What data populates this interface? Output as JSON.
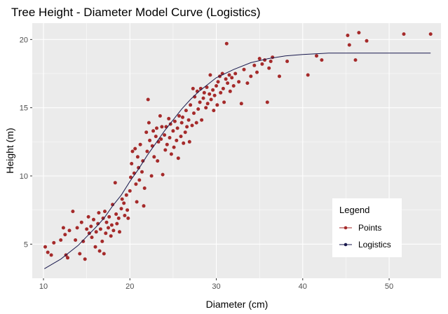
{
  "chart_data": {
    "type": "scatter",
    "title": "Tree Height - Diameter Model Curve (Logistics)",
    "xlabel": "Diameter (cm)",
    "ylabel": "Height (m)",
    "xlim": [
      8.7,
      56.0
    ],
    "ylim": [
      2.5,
      21.2
    ],
    "x_ticks": [
      10,
      20,
      30,
      40,
      50
    ],
    "y_ticks": [
      5,
      10,
      15,
      20
    ],
    "grid": true,
    "legend": {
      "title": "Legend",
      "placement": "bottom-right",
      "entries": [
        {
          "label": "Points",
          "color": "#a52a2a",
          "kind": "point"
        },
        {
          "label": "Logistics",
          "color": "#1a1a4e",
          "kind": "line"
        }
      ]
    },
    "colors": {
      "points": "#a52a2a",
      "curve": "#1a1a4e",
      "panel": "#ebebeb",
      "grid": "#ffffff"
    },
    "series": [
      {
        "name": "Points",
        "points": [
          [
            10.2,
            4.8
          ],
          [
            10.5,
            4.4
          ],
          [
            10.9,
            4.2
          ],
          [
            11.2,
            5.1
          ],
          [
            12.0,
            5.3
          ],
          [
            12.3,
            6.2
          ],
          [
            12.6,
            4.2
          ],
          [
            12.8,
            4.0
          ],
          [
            12.5,
            5.7
          ],
          [
            13.0,
            6.0
          ],
          [
            13.4,
            7.4
          ],
          [
            13.7,
            5.3
          ],
          [
            13.9,
            6.2
          ],
          [
            14.2,
            4.3
          ],
          [
            14.4,
            6.6
          ],
          [
            14.6,
            5.2
          ],
          [
            14.8,
            3.9
          ],
          [
            15.0,
            6.1
          ],
          [
            15.2,
            7.0
          ],
          [
            15.3,
            5.8
          ],
          [
            15.5,
            6.3
          ],
          [
            15.6,
            5.5
          ],
          [
            15.8,
            6.8
          ],
          [
            16.0,
            4.8
          ],
          [
            16.1,
            5.9
          ],
          [
            16.3,
            6.5
          ],
          [
            16.4,
            7.3
          ],
          [
            16.5,
            4.5
          ],
          [
            16.6,
            6.1
          ],
          [
            16.8,
            5.2
          ],
          [
            16.9,
            6.9
          ],
          [
            17.0,
            4.3
          ],
          [
            17.1,
            7.4
          ],
          [
            17.2,
            5.8
          ],
          [
            17.3,
            6.6
          ],
          [
            17.5,
            6.2
          ],
          [
            17.6,
            7.0
          ],
          [
            17.8,
            5.6
          ],
          [
            17.9,
            6.4
          ],
          [
            18.0,
            7.9
          ],
          [
            18.1,
            6.0
          ],
          [
            18.3,
            9.5
          ],
          [
            18.4,
            7.2
          ],
          [
            18.5,
            6.5
          ],
          [
            18.7,
            6.9
          ],
          [
            18.8,
            5.9
          ],
          [
            19.0,
            7.6
          ],
          [
            19.1,
            8.3
          ],
          [
            19.3,
            8.0
          ],
          [
            19.4,
            7.1
          ],
          [
            19.6,
            8.6
          ],
          [
            19.7,
            7.5
          ],
          [
            19.8,
            6.9
          ],
          [
            20.0,
            8.9
          ],
          [
            20.1,
            9.9
          ],
          [
            20.2,
            10.9
          ],
          [
            20.3,
            11.8
          ],
          [
            20.5,
            10.2
          ],
          [
            20.6,
            12.0
          ],
          [
            20.7,
            9.4
          ],
          [
            20.8,
            8.1
          ],
          [
            20.9,
            11.4
          ],
          [
            21.0,
            10.6
          ],
          [
            21.1,
            9.7
          ],
          [
            21.2,
            12.3
          ],
          [
            21.4,
            10.3
          ],
          [
            21.5,
            11.1
          ],
          [
            21.6,
            7.8
          ],
          [
            21.7,
            9.1
          ],
          [
            21.9,
            13.2
          ],
          [
            22.0,
            11.8
          ],
          [
            22.1,
            15.6
          ],
          [
            22.2,
            13.9
          ],
          [
            22.3,
            12.6
          ],
          [
            22.5,
            10.0
          ],
          [
            22.6,
            12.2
          ],
          [
            22.7,
            13.3
          ],
          [
            22.8,
            11.4
          ],
          [
            23.0,
            12.9
          ],
          [
            23.1,
            13.5
          ],
          [
            23.2,
            11.1
          ],
          [
            23.3,
            12.5
          ],
          [
            23.5,
            14.4
          ],
          [
            23.6,
            12.7
          ],
          [
            23.7,
            13.6
          ],
          [
            23.8,
            10.1
          ],
          [
            24.0,
            13.0
          ],
          [
            24.1,
            11.9
          ],
          [
            24.2,
            13.6
          ],
          [
            24.3,
            12.3
          ],
          [
            24.5,
            14.2
          ],
          [
            24.6,
            12.8
          ],
          [
            24.7,
            13.8
          ],
          [
            24.8,
            11.6
          ],
          [
            25.0,
            13.3
          ],
          [
            25.1,
            12.1
          ],
          [
            25.2,
            14.0
          ],
          [
            25.4,
            12.6
          ],
          [
            25.5,
            13.5
          ],
          [
            25.6,
            11.3
          ],
          [
            25.7,
            14.4
          ],
          [
            25.9,
            12.9
          ],
          [
            26.0,
            13.9
          ],
          [
            26.1,
            14.3
          ],
          [
            26.2,
            12.4
          ],
          [
            26.4,
            13.2
          ],
          [
            26.5,
            14.8
          ],
          [
            26.6,
            13.6
          ],
          [
            26.8,
            14.1
          ],
          [
            26.9,
            12.5
          ],
          [
            27.0,
            15.2
          ],
          [
            27.2,
            13.7
          ],
          [
            27.3,
            16.4
          ],
          [
            27.4,
            14.6
          ],
          [
            27.5,
            15.8
          ],
          [
            27.7,
            13.9
          ],
          [
            27.8,
            16.2
          ],
          [
            27.9,
            14.9
          ],
          [
            28.1,
            15.4
          ],
          [
            28.2,
            16.4
          ],
          [
            28.3,
            14.1
          ],
          [
            28.5,
            15.7
          ],
          [
            28.6,
            16.1
          ],
          [
            28.8,
            15.0
          ],
          [
            28.9,
            16.5
          ],
          [
            29.0,
            15.3
          ],
          [
            29.2,
            16.0
          ],
          [
            29.3,
            17.4
          ],
          [
            29.4,
            15.6
          ],
          [
            29.6,
            16.3
          ],
          [
            29.7,
            14.8
          ],
          [
            29.8,
            15.9
          ],
          [
            30.0,
            16.6
          ],
          [
            30.1,
            15.2
          ],
          [
            30.2,
            16.9
          ],
          [
            30.4,
            17.3
          ],
          [
            30.5,
            16.1
          ],
          [
            30.7,
            17.5
          ],
          [
            30.8,
            16.4
          ],
          [
            30.9,
            15.4
          ],
          [
            31.1,
            17.1
          ],
          [
            31.2,
            19.7
          ],
          [
            31.3,
            16.8
          ],
          [
            31.5,
            17.4
          ],
          [
            31.6,
            16.2
          ],
          [
            31.8,
            17.2
          ],
          [
            32.0,
            16.6
          ],
          [
            32.2,
            17.5
          ],
          [
            32.6,
            16.9
          ],
          [
            32.9,
            15.3
          ],
          [
            33.2,
            17.8
          ],
          [
            33.6,
            16.8
          ],
          [
            34.0,
            17.3
          ],
          [
            34.4,
            18.1
          ],
          [
            34.7,
            17.6
          ],
          [
            35.0,
            18.6
          ],
          [
            35.3,
            18.2
          ],
          [
            35.6,
            18.5
          ],
          [
            35.9,
            15.4
          ],
          [
            36.1,
            17.9
          ],
          [
            36.3,
            18.4
          ],
          [
            36.5,
            18.7
          ],
          [
            37.3,
            17.3
          ],
          [
            38.2,
            18.4
          ],
          [
            40.6,
            17.4
          ],
          [
            41.6,
            18.8
          ],
          [
            42.2,
            18.5
          ],
          [
            45.2,
            20.3
          ],
          [
            45.4,
            19.6
          ],
          [
            46.1,
            18.5
          ],
          [
            46.5,
            20.5
          ],
          [
            47.4,
            19.9
          ],
          [
            51.7,
            20.4
          ],
          [
            54.8,
            20.4
          ]
        ]
      },
      {
        "name": "Logistics",
        "points": [
          [
            10.1,
            3.2
          ],
          [
            12.0,
            3.9
          ],
          [
            14.0,
            4.9
          ],
          [
            16.0,
            6.2
          ],
          [
            17.0,
            6.9
          ],
          [
            18.0,
            7.8
          ],
          [
            19.0,
            8.6
          ],
          [
            20.0,
            9.6
          ],
          [
            21.0,
            10.5
          ],
          [
            22.0,
            11.5
          ],
          [
            23.0,
            12.4
          ],
          [
            24.0,
            13.3
          ],
          [
            25.0,
            14.1
          ],
          [
            26.0,
            14.9
          ],
          [
            27.0,
            15.6
          ],
          [
            28.0,
            16.2
          ],
          [
            29.0,
            16.7
          ],
          [
            30.0,
            17.2
          ],
          [
            32.0,
            17.8
          ],
          [
            34.0,
            18.3
          ],
          [
            36.0,
            18.6
          ],
          [
            38.0,
            18.8
          ],
          [
            40.0,
            18.9
          ],
          [
            43.0,
            19.0
          ],
          [
            46.0,
            19.0
          ],
          [
            50.0,
            19.0
          ],
          [
            54.8,
            19.0
          ]
        ]
      }
    ]
  }
}
